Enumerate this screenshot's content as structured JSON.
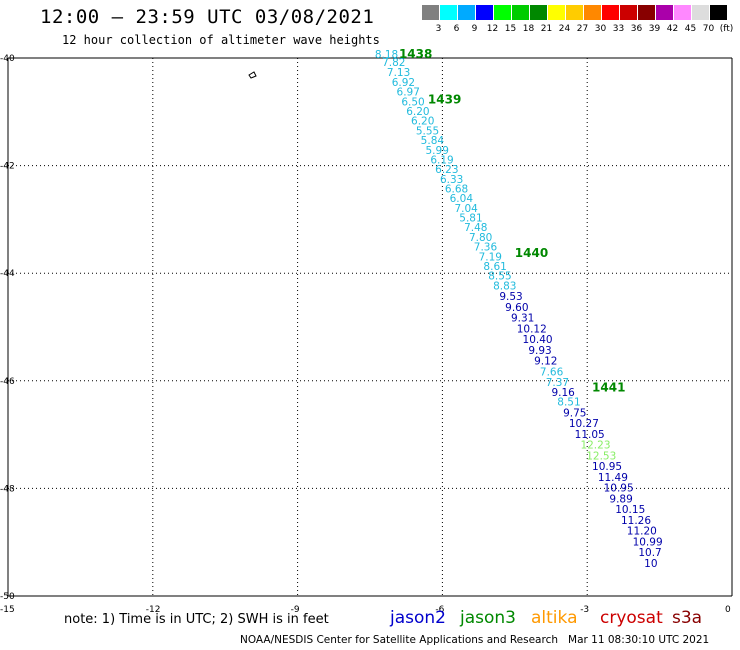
{
  "title": "12:00 – 23:59 UTC 03/08/2021",
  "subtitle": "12 hour collection of altimeter wave heights",
  "legend": {
    "unit": "(ft)",
    "colors": [
      "#808080",
      "#00ffff",
      "#00aaff",
      "#0000ff",
      "#00ff00",
      "#00cc00",
      "#008800",
      "#ffff00",
      "#ffcc00",
      "#ff8800",
      "#ff0000",
      "#cc0000",
      "#880000",
      "#aa00aa",
      "#ff88ff",
      "#dddddd",
      "#000000"
    ],
    "labels": [
      "3",
      "6",
      "9",
      "12",
      "15",
      "18",
      "21",
      "24",
      "27",
      "30",
      "33",
      "36",
      "39",
      "42",
      "45",
      "70",
      "(ft)"
    ]
  },
  "axes": {
    "lat_ticks": [
      "-40",
      "-42",
      "-44",
      "-46",
      "-48",
      "-50"
    ],
    "lon_ticks": [
      "-15",
      "-12",
      "-9",
      "-6",
      "-3",
      "0"
    ],
    "lat_range": [
      -50,
      -40
    ],
    "lon_range": [
      -15,
      0
    ]
  },
  "track_colors": {
    "cyan": "#22bbdd",
    "navy": "#0000aa",
    "green": "#88ee66",
    "time": "#008800"
  },
  "points": [
    {
      "v": "8.18",
      "lon": -7.4,
      "lat": -40.0,
      "c": "cyan"
    },
    {
      "v": "7.82",
      "lon": -7.25,
      "lat": -40.15,
      "c": "cyan"
    },
    {
      "v": "7.13",
      "lon": -7.15,
      "lat": -40.33,
      "c": "cyan"
    },
    {
      "v": "6.92",
      "lon": -7.05,
      "lat": -40.52,
      "c": "cyan"
    },
    {
      "v": "6.97",
      "lon": -6.95,
      "lat": -40.7,
      "c": "cyan"
    },
    {
      "v": "6.50",
      "lon": -6.85,
      "lat": -40.88,
      "c": "cyan"
    },
    {
      "v": "6.20",
      "lon": -6.75,
      "lat": -41.06,
      "c": "cyan"
    },
    {
      "v": "6.20",
      "lon": -6.65,
      "lat": -41.24,
      "c": "cyan"
    },
    {
      "v": "5.55",
      "lon": -6.55,
      "lat": -41.42,
      "c": "cyan"
    },
    {
      "v": "5.84",
      "lon": -6.45,
      "lat": -41.6,
      "c": "cyan"
    },
    {
      "v": "5.99",
      "lon": -6.35,
      "lat": -41.78,
      "c": "cyan"
    },
    {
      "v": "6.19",
      "lon": -6.25,
      "lat": -41.96,
      "c": "cyan"
    },
    {
      "v": "6.23",
      "lon": -6.15,
      "lat": -42.14,
      "c": "cyan"
    },
    {
      "v": "6.33",
      "lon": -6.05,
      "lat": -42.32,
      "c": "cyan"
    },
    {
      "v": "6.68",
      "lon": -5.95,
      "lat": -42.5,
      "c": "cyan"
    },
    {
      "v": "6.04",
      "lon": -5.85,
      "lat": -42.68,
      "c": "cyan"
    },
    {
      "v": "7.04",
      "lon": -5.75,
      "lat": -42.86,
      "c": "cyan"
    },
    {
      "v": "5.81",
      "lon": -5.65,
      "lat": -43.04,
      "c": "cyan"
    },
    {
      "v": "7.48",
      "lon": -5.55,
      "lat": -43.22,
      "c": "cyan"
    },
    {
      "v": "7.80",
      "lon": -5.45,
      "lat": -43.4,
      "c": "cyan"
    },
    {
      "v": "7.36",
      "lon": -5.35,
      "lat": -43.58,
      "c": "cyan"
    },
    {
      "v": "7.19",
      "lon": -5.25,
      "lat": -43.76,
      "c": "cyan"
    },
    {
      "v": "8.61",
      "lon": -5.15,
      "lat": -43.94,
      "c": "cyan"
    },
    {
      "v": "8.55",
      "lon": -5.05,
      "lat": -44.12,
      "c": "cyan"
    },
    {
      "v": "8.83",
      "lon": -4.95,
      "lat": -44.3,
      "c": "cyan"
    },
    {
      "v": "9.53",
      "lon": -4.82,
      "lat": -44.5,
      "c": "navy"
    },
    {
      "v": "9.60",
      "lon": -4.7,
      "lat": -44.7,
      "c": "navy"
    },
    {
      "v": "9.31",
      "lon": -4.58,
      "lat": -44.9,
      "c": "navy"
    },
    {
      "v": "10.12",
      "lon": -4.46,
      "lat": -45.1,
      "c": "navy"
    },
    {
      "v": "10.40",
      "lon": -4.34,
      "lat": -45.3,
      "c": "navy"
    },
    {
      "v": "9.93",
      "lon": -4.22,
      "lat": -45.5,
      "c": "navy"
    },
    {
      "v": "9.12",
      "lon": -4.1,
      "lat": -45.7,
      "c": "navy"
    },
    {
      "v": "7.66",
      "lon": -3.98,
      "lat": -45.9,
      "c": "cyan"
    },
    {
      "v": "7.37",
      "lon": -3.86,
      "lat": -46.1,
      "c": "cyan"
    },
    {
      "v": "9.16",
      "lon": -3.74,
      "lat": -46.28,
      "c": "navy"
    },
    {
      "v": "8.51",
      "lon": -3.62,
      "lat": -46.46,
      "c": "cyan"
    },
    {
      "v": "9.75",
      "lon": -3.5,
      "lat": -46.66,
      "c": "navy"
    },
    {
      "v": "10.27",
      "lon": -3.38,
      "lat": -46.86,
      "c": "navy"
    },
    {
      "v": "11.05",
      "lon": -3.26,
      "lat": -47.06,
      "c": "navy"
    },
    {
      "v": "12.23",
      "lon": -3.14,
      "lat": -47.26,
      "c": "green"
    },
    {
      "v": "12.53",
      "lon": -3.02,
      "lat": -47.46,
      "c": "green"
    },
    {
      "v": "10.95",
      "lon": -2.9,
      "lat": -47.66,
      "c": "navy"
    },
    {
      "v": "11.49",
      "lon": -2.78,
      "lat": -47.86,
      "c": "navy"
    },
    {
      "v": "10.95",
      "lon": -2.66,
      "lat": -48.06,
      "c": "navy"
    },
    {
      "v": "9.89",
      "lon": -2.54,
      "lat": -48.26,
      "c": "navy"
    },
    {
      "v": "10.15",
      "lon": -2.42,
      "lat": -48.46,
      "c": "navy"
    },
    {
      "v": "11.26",
      "lon": -2.3,
      "lat": -48.66,
      "c": "navy"
    },
    {
      "v": "11.20",
      "lon": -2.18,
      "lat": -48.86,
      "c": "navy"
    },
    {
      "v": "10.99",
      "lon": -2.06,
      "lat": -49.06,
      "c": "navy"
    },
    {
      "v": "10.7",
      "lon": -1.94,
      "lat": -49.26,
      "c": "navy"
    },
    {
      "v": "10",
      "lon": -1.82,
      "lat": -49.46,
      "c": "navy"
    }
  ],
  "times": [
    {
      "t": "1438",
      "lon": -6.9,
      "lat": -40.0
    },
    {
      "t": "1439",
      "lon": -6.3,
      "lat": -40.85
    },
    {
      "t": "1440",
      "lon": -4.5,
      "lat": -43.7
    },
    {
      "t": "1441",
      "lon": -2.9,
      "lat": -46.2
    }
  ],
  "note": "note: 1) Time is in UTC; 2) SWH is in feet",
  "satellites": [
    {
      "name": "jason2",
      "color": "#0000cc"
    },
    {
      "name": "jason3",
      "color": "#008800"
    },
    {
      "name": "altika",
      "color": "#ff9900"
    },
    {
      "name": "cryosat",
      "color": "#cc0000"
    },
    {
      "name": "s3a",
      "color": "#880000"
    }
  ],
  "credit": "NOAA/NESDIS Center for Satellite Applications and Research   Mar 11 08:30:10 UTC 2021"
}
